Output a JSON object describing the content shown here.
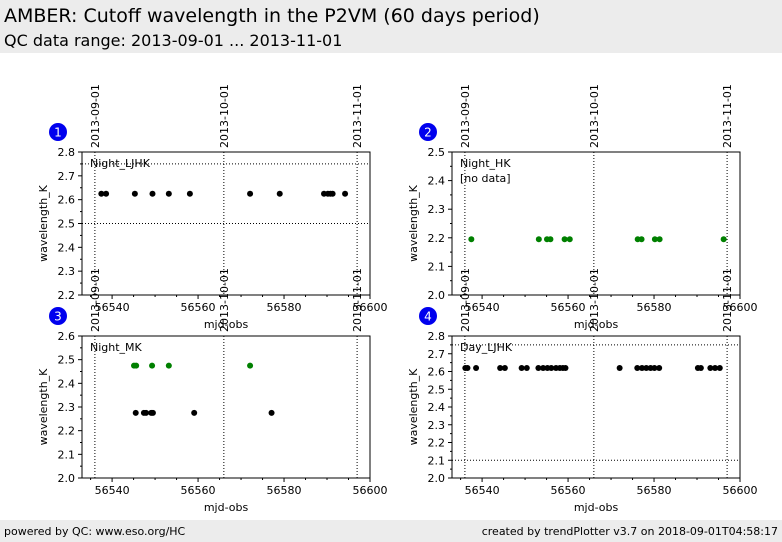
{
  "header": {
    "title": "AMBER: Cutoff wavelength in the P2VM (60 days period)",
    "subtitle": "QC data range: 2013-09-01 ... 2013-11-01"
  },
  "footer": {
    "left": "powered by QC: www.eso.org/HC",
    "right": "created by trendPlotter v3.7 on 2018-09-01T04:58:17"
  },
  "colors": {
    "primary": "#000000",
    "secondary": "#008000",
    "badge": "#0000ee"
  },
  "chart_data": [
    {
      "type": "scatter",
      "panel": "1",
      "label": "Night_LJHK",
      "note": "",
      "xlabel": "mjd-obs",
      "ylabel": "wavelength_K",
      "xlim": [
        56533,
        56600
      ],
      "ylim": [
        2.2,
        2.8
      ],
      "xticks": [
        56540,
        56560,
        56580,
        56600
      ],
      "yticks": [
        2.2,
        2.3,
        2.4,
        2.5,
        2.6,
        2.7,
        2.8
      ],
      "date_markers": [
        {
          "x": 56536,
          "label": "2013-09-01"
        },
        {
          "x": 56566,
          "label": "2013-10-01"
        },
        {
          "x": 56597,
          "label": "2013-11-01"
        }
      ],
      "ref_lines": [
        2.5,
        2.75
      ],
      "series": [
        {
          "color": "primary",
          "x": [
            56537.5,
            56538.6,
            56545.3,
            56549.4,
            56553.2,
            56558.1,
            56572.1,
            56579.0,
            56589.3,
            56590.2,
            56590.8,
            56591.3,
            56594.2
          ],
          "y": [
            2.625,
            2.625,
            2.625,
            2.625,
            2.625,
            2.625,
            2.625,
            2.625,
            2.625,
            2.625,
            2.625,
            2.625,
            2.625
          ]
        }
      ]
    },
    {
      "type": "scatter",
      "panel": "2",
      "label": "Night_HK",
      "note": "[no data]",
      "xlabel": "mjd-obs",
      "ylabel": "wavelength_K",
      "xlim": [
        56533,
        56600
      ],
      "ylim": [
        2.0,
        2.5
      ],
      "xticks": [
        56540,
        56560,
        56580,
        56600
      ],
      "yticks": [
        2.0,
        2.1,
        2.2,
        2.3,
        2.4,
        2.5
      ],
      "date_markers": [
        {
          "x": 56536,
          "label": "2013-09-01"
        },
        {
          "x": 56566,
          "label": "2013-10-01"
        },
        {
          "x": 56597,
          "label": "2013-11-01"
        }
      ],
      "ref_lines": [],
      "series": [
        {
          "color": "secondary",
          "x": [
            56537.5,
            56553.2,
            56555.1,
            56555.9,
            56559.2,
            56560.4,
            56576.2,
            56577.1,
            56580.2,
            56581.3,
            56596.2
          ],
          "y": [
            2.195,
            2.195,
            2.195,
            2.195,
            2.195,
            2.195,
            2.195,
            2.195,
            2.195,
            2.195,
            2.195
          ]
        }
      ]
    },
    {
      "type": "scatter",
      "panel": "3",
      "label": "Night_MK",
      "note": "",
      "xlabel": "mjd-obs",
      "ylabel": "wavelength_K",
      "xlim": [
        56533,
        56600
      ],
      "ylim": [
        2.0,
        2.6
      ],
      "xticks": [
        56540,
        56560,
        56580,
        56600
      ],
      "yticks": [
        2.0,
        2.1,
        2.2,
        2.3,
        2.4,
        2.5,
        2.6
      ],
      "date_markers": [
        {
          "x": 56536,
          "label": "2013-09-01"
        },
        {
          "x": 56566,
          "label": "2013-10-01"
        },
        {
          "x": 56597,
          "label": "2013-11-01"
        }
      ],
      "ref_lines": [],
      "series": [
        {
          "color": "secondary",
          "x": [
            56545.1,
            56545.6,
            56549.3,
            56553.2,
            56572.1
          ],
          "y": [
            2.475,
            2.475,
            2.475,
            2.475,
            2.475
          ]
        },
        {
          "color": "primary",
          "x": [
            56545.5,
            56547.4,
            56547.9,
            56549.1,
            56549.5,
            56559.1,
            56577.1
          ],
          "y": [
            2.275,
            2.275,
            2.275,
            2.275,
            2.275,
            2.275,
            2.275
          ]
        }
      ]
    },
    {
      "type": "scatter",
      "panel": "4",
      "label": "Day_LJHK",
      "note": "",
      "xlabel": "mjd-obs",
      "ylabel": "wavelength_K",
      "xlim": [
        56533,
        56600
      ],
      "ylim": [
        2.0,
        2.8
      ],
      "xticks": [
        56540,
        56560,
        56580,
        56600
      ],
      "yticks": [
        2.0,
        2.1,
        2.2,
        2.3,
        2.4,
        2.5,
        2.6,
        2.7,
        2.8
      ],
      "date_markers": [
        {
          "x": 56536,
          "label": "2013-09-01"
        },
        {
          "x": 56566,
          "label": "2013-10-01"
        },
        {
          "x": 56597,
          "label": "2013-11-01"
        }
      ],
      "ref_lines": [
        2.1,
        2.75
      ],
      "series": [
        {
          "color": "primary",
          "x": [
            56536.1,
            56536.6,
            56538.6,
            56544.2,
            56545.3,
            56549.2,
            56550.4,
            56553.1,
            56554.2,
            56555.2,
            56556.1,
            56557.2,
            56558.1,
            56558.8,
            56559.4,
            56572.0,
            56576.1,
            56577.2,
            56578.2,
            56579.2,
            56580.1,
            56581.2,
            56590.2,
            56590.9,
            56593.1,
            56594.2,
            56595.3
          ],
          "y": [
            2.62,
            2.62,
            2.62,
            2.62,
            2.62,
            2.62,
            2.62,
            2.62,
            2.62,
            2.62,
            2.62,
            2.62,
            2.62,
            2.62,
            2.62,
            2.62,
            2.62,
            2.62,
            2.62,
            2.62,
            2.62,
            2.62,
            2.62,
            2.62,
            2.62,
            2.62,
            2.62
          ]
        }
      ]
    }
  ]
}
